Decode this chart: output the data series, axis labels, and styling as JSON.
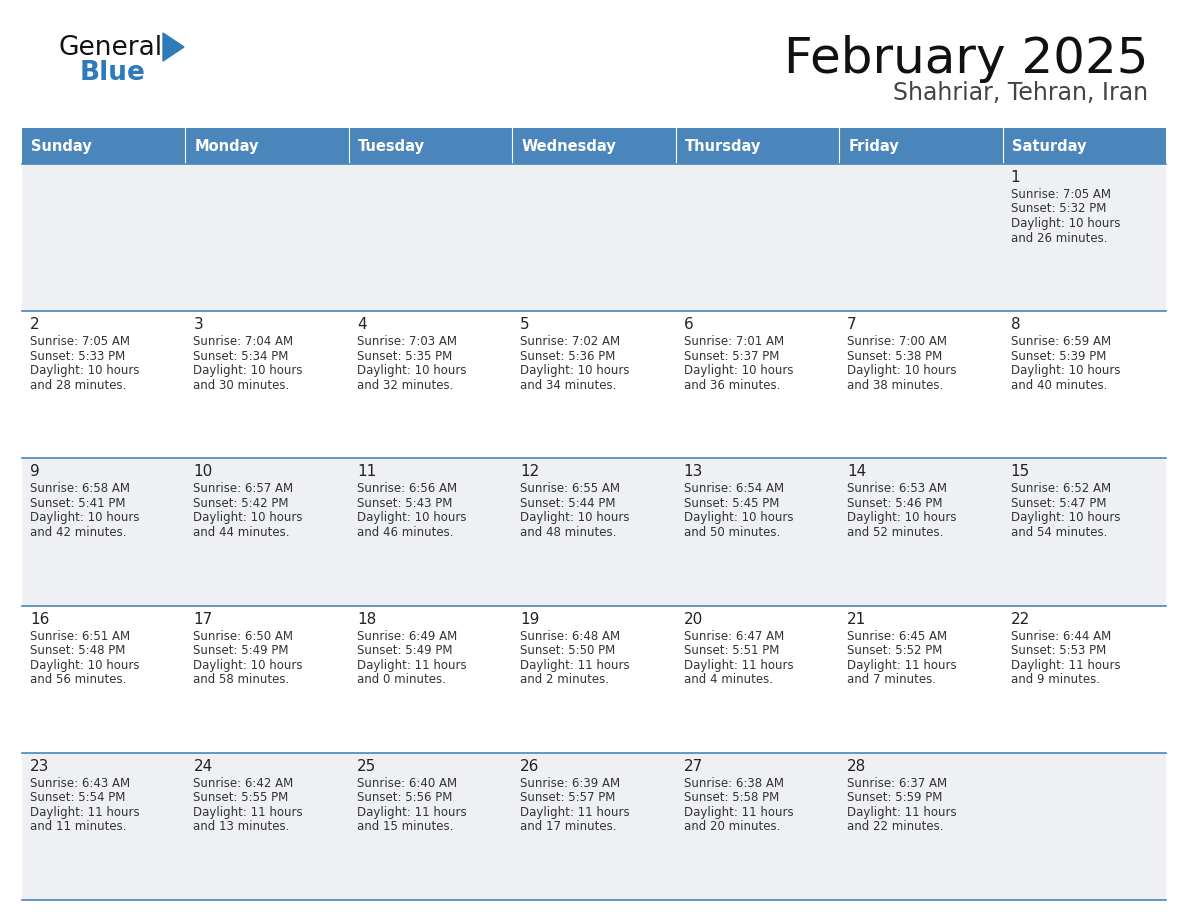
{
  "title": "February 2025",
  "subtitle": "Shahriar, Tehran, Iran",
  "days_of_week": [
    "Sunday",
    "Monday",
    "Tuesday",
    "Wednesday",
    "Thursday",
    "Friday",
    "Saturday"
  ],
  "header_bg": "#4a86bc",
  "header_text": "#FFFFFF",
  "cell_bg_odd": "#eef0f3",
  "cell_bg_even": "#FFFFFF",
  "cell_border": "#4a86bc",
  "day_number_color": "#222222",
  "info_text_color": "#333333",
  "title_color": "#111111",
  "subtitle_color": "#444444",
  "logo_general_color": "#111111",
  "logo_blue_color": "#2e7bba",
  "calendar_data": [
    [
      null,
      null,
      null,
      null,
      null,
      null,
      {
        "day": 1,
        "sunrise": "7:05 AM",
        "sunset": "5:32 PM",
        "daylight": "10 hours",
        "daylight2": "and 26 minutes."
      }
    ],
    [
      {
        "day": 2,
        "sunrise": "7:05 AM",
        "sunset": "5:33 PM",
        "daylight": "10 hours",
        "daylight2": "and 28 minutes."
      },
      {
        "day": 3,
        "sunrise": "7:04 AM",
        "sunset": "5:34 PM",
        "daylight": "10 hours",
        "daylight2": "and 30 minutes."
      },
      {
        "day": 4,
        "sunrise": "7:03 AM",
        "sunset": "5:35 PM",
        "daylight": "10 hours",
        "daylight2": "and 32 minutes."
      },
      {
        "day": 5,
        "sunrise": "7:02 AM",
        "sunset": "5:36 PM",
        "daylight": "10 hours",
        "daylight2": "and 34 minutes."
      },
      {
        "day": 6,
        "sunrise": "7:01 AM",
        "sunset": "5:37 PM",
        "daylight": "10 hours",
        "daylight2": "and 36 minutes."
      },
      {
        "day": 7,
        "sunrise": "7:00 AM",
        "sunset": "5:38 PM",
        "daylight": "10 hours",
        "daylight2": "and 38 minutes."
      },
      {
        "day": 8,
        "sunrise": "6:59 AM",
        "sunset": "5:39 PM",
        "daylight": "10 hours",
        "daylight2": "and 40 minutes."
      }
    ],
    [
      {
        "day": 9,
        "sunrise": "6:58 AM",
        "sunset": "5:41 PM",
        "daylight": "10 hours",
        "daylight2": "and 42 minutes."
      },
      {
        "day": 10,
        "sunrise": "6:57 AM",
        "sunset": "5:42 PM",
        "daylight": "10 hours",
        "daylight2": "and 44 minutes."
      },
      {
        "day": 11,
        "sunrise": "6:56 AM",
        "sunset": "5:43 PM",
        "daylight": "10 hours",
        "daylight2": "and 46 minutes."
      },
      {
        "day": 12,
        "sunrise": "6:55 AM",
        "sunset": "5:44 PM",
        "daylight": "10 hours",
        "daylight2": "and 48 minutes."
      },
      {
        "day": 13,
        "sunrise": "6:54 AM",
        "sunset": "5:45 PM",
        "daylight": "10 hours",
        "daylight2": "and 50 minutes."
      },
      {
        "day": 14,
        "sunrise": "6:53 AM",
        "sunset": "5:46 PM",
        "daylight": "10 hours",
        "daylight2": "and 52 minutes."
      },
      {
        "day": 15,
        "sunrise": "6:52 AM",
        "sunset": "5:47 PM",
        "daylight": "10 hours",
        "daylight2": "and 54 minutes."
      }
    ],
    [
      {
        "day": 16,
        "sunrise": "6:51 AM",
        "sunset": "5:48 PM",
        "daylight": "10 hours",
        "daylight2": "and 56 minutes."
      },
      {
        "day": 17,
        "sunrise": "6:50 AM",
        "sunset": "5:49 PM",
        "daylight": "10 hours",
        "daylight2": "and 58 minutes."
      },
      {
        "day": 18,
        "sunrise": "6:49 AM",
        "sunset": "5:49 PM",
        "daylight": "11 hours",
        "daylight2": "and 0 minutes."
      },
      {
        "day": 19,
        "sunrise": "6:48 AM",
        "sunset": "5:50 PM",
        "daylight": "11 hours",
        "daylight2": "and 2 minutes."
      },
      {
        "day": 20,
        "sunrise": "6:47 AM",
        "sunset": "5:51 PM",
        "daylight": "11 hours",
        "daylight2": "and 4 minutes."
      },
      {
        "day": 21,
        "sunrise": "6:45 AM",
        "sunset": "5:52 PM",
        "daylight": "11 hours",
        "daylight2": "and 7 minutes."
      },
      {
        "day": 22,
        "sunrise": "6:44 AM",
        "sunset": "5:53 PM",
        "daylight": "11 hours",
        "daylight2": "and 9 minutes."
      }
    ],
    [
      {
        "day": 23,
        "sunrise": "6:43 AM",
        "sunset": "5:54 PM",
        "daylight": "11 hours",
        "daylight2": "and 11 minutes."
      },
      {
        "day": 24,
        "sunrise": "6:42 AM",
        "sunset": "5:55 PM",
        "daylight": "11 hours",
        "daylight2": "and 13 minutes."
      },
      {
        "day": 25,
        "sunrise": "6:40 AM",
        "sunset": "5:56 PM",
        "daylight": "11 hours",
        "daylight2": "and 15 minutes."
      },
      {
        "day": 26,
        "sunrise": "6:39 AM",
        "sunset": "5:57 PM",
        "daylight": "11 hours",
        "daylight2": "and 17 minutes."
      },
      {
        "day": 27,
        "sunrise": "6:38 AM",
        "sunset": "5:58 PM",
        "daylight": "11 hours",
        "daylight2": "and 20 minutes."
      },
      {
        "day": 28,
        "sunrise": "6:37 AM",
        "sunset": "5:59 PM",
        "daylight": "11 hours",
        "daylight2": "and 22 minutes."
      },
      null
    ]
  ]
}
